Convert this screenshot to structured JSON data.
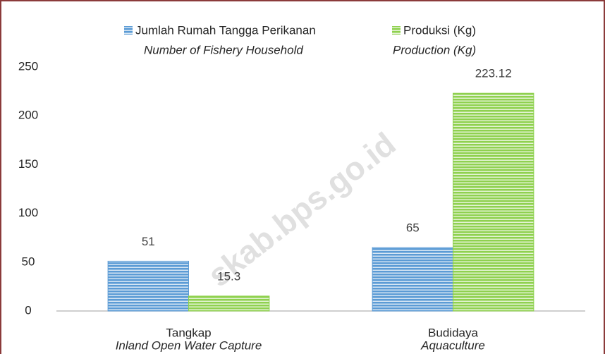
{
  "chart_data": {
    "type": "bar",
    "watermark": "skab.bps.go.id",
    "categories": [
      "Tangkap",
      "Budidaya"
    ],
    "category_translations": [
      "Inland Open Water Capture",
      "Aquaculture"
    ],
    "series": [
      {
        "name": "Jumlah Rumah Tangga Perikanan",
        "name_translation": "Number of Fishery Household",
        "color": "#5b9bd5",
        "values": [
          51,
          65
        ]
      },
      {
        "name": "Produksi (Kg)",
        "name_translation": "Production (Kg)",
        "color": "#8fd14f",
        "values": [
          15.3,
          223.12
        ]
      }
    ],
    "ylim": [
      0,
      250
    ],
    "yticks": [
      0,
      50,
      100,
      150,
      200,
      250
    ],
    "grid": false,
    "legend": "top"
  }
}
